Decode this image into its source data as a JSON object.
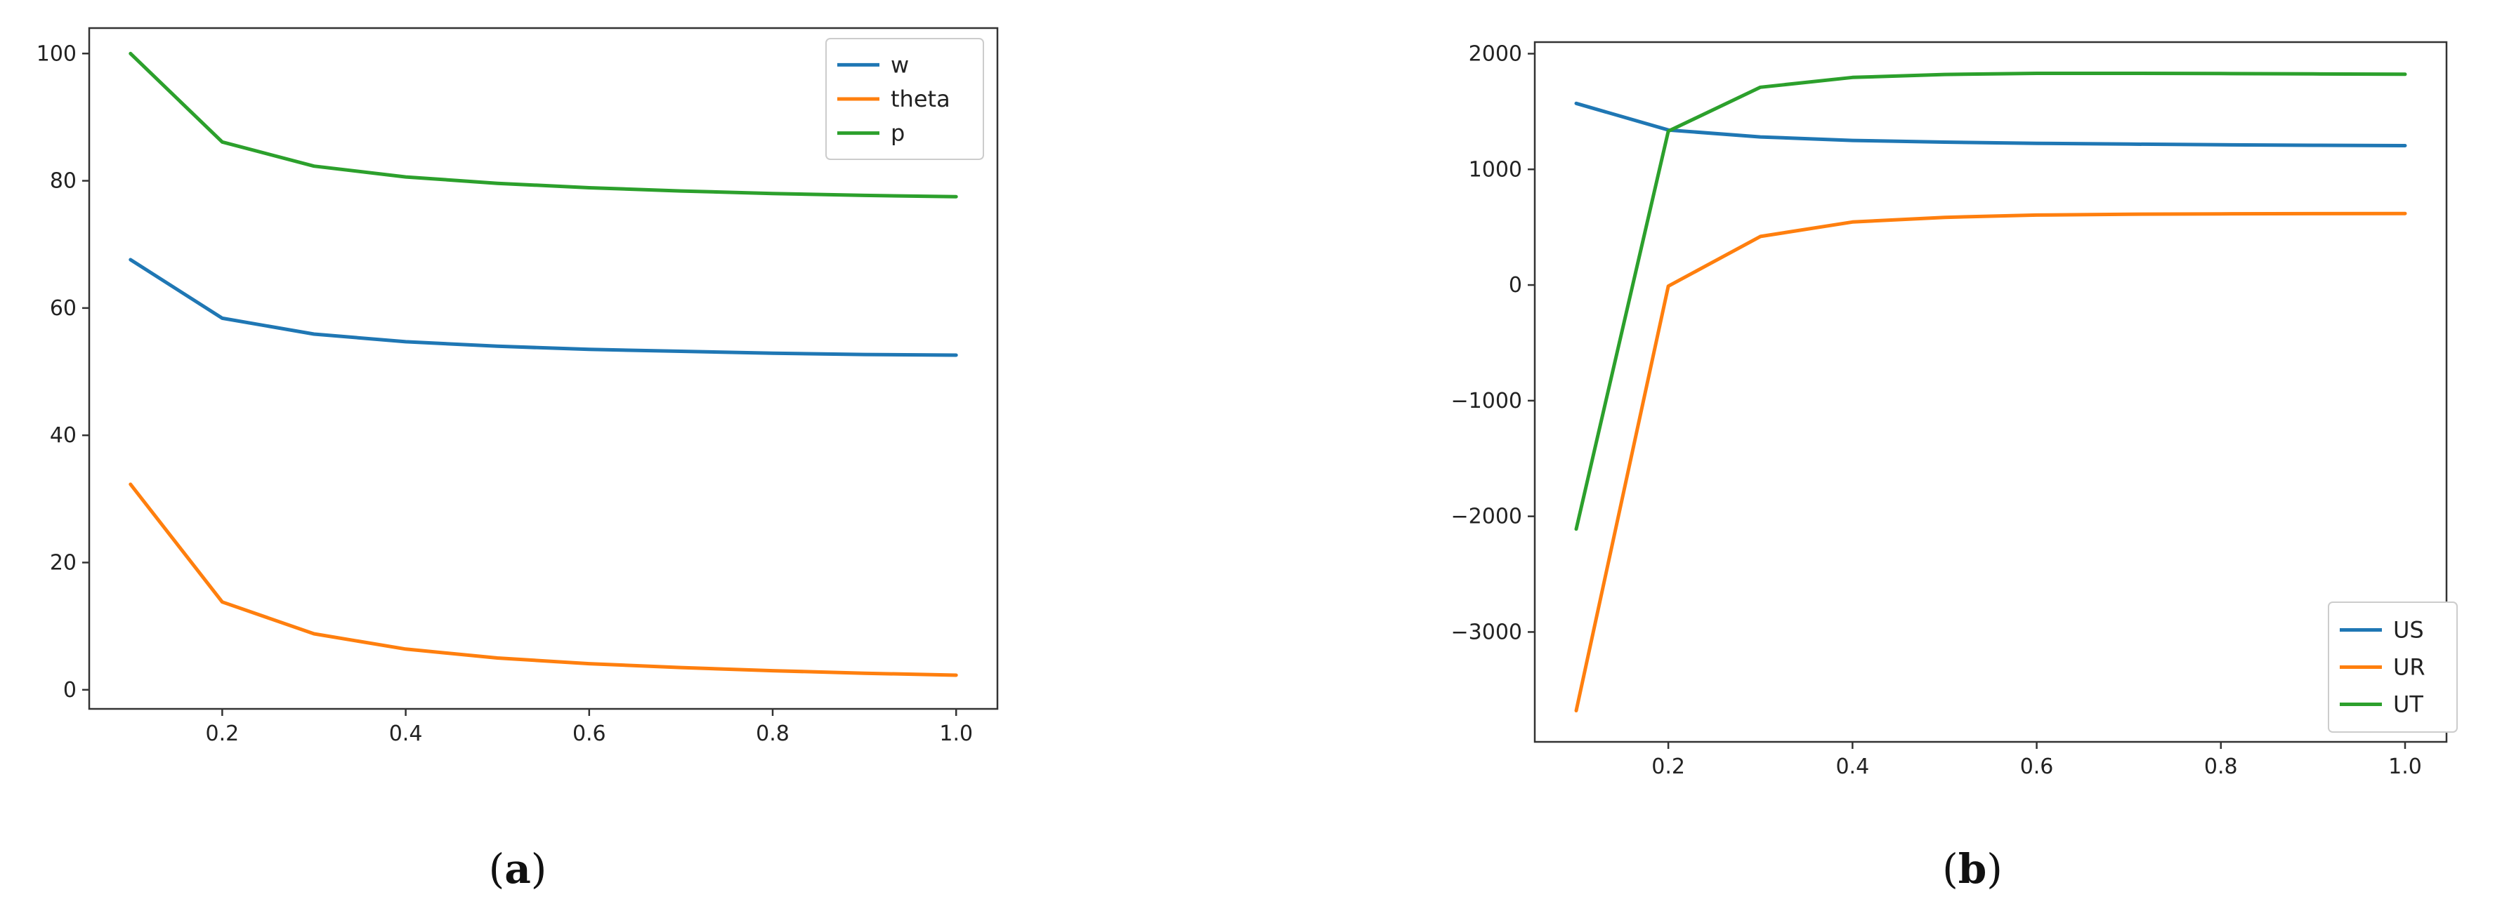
{
  "colors": {
    "blue": "#1f77b4",
    "orange": "#ff7f0e",
    "green": "#2ca02c"
  },
  "chart_data": [
    {
      "type": "line",
      "caption": "a",
      "x": [
        0.1,
        0.2,
        0.3,
        0.4,
        0.5,
        0.6,
        0.7,
        0.8,
        0.9,
        1.0
      ],
      "xlim": [
        0.055,
        1.045
      ],
      "ylim": [
        -3,
        104
      ],
      "xticks": [
        0.2,
        0.4,
        0.6,
        0.8,
        1.0
      ],
      "xtick_labels": [
        "0.2",
        "0.4",
        "0.6",
        "0.8",
        "1.0"
      ],
      "yticks": [
        0,
        20,
        40,
        60,
        80,
        100
      ],
      "ytick_labels": [
        "0",
        "20",
        "40",
        "60",
        "80",
        "100"
      ],
      "legend_position": "top-right",
      "grid": false,
      "series": [
        {
          "name": "w",
          "color": "#1f77b4",
          "values": [
            67.6,
            58.4,
            55.9,
            54.7,
            54.0,
            53.5,
            53.2,
            52.9,
            52.7,
            52.6
          ]
        },
        {
          "name": "theta",
          "color": "#ff7f0e",
          "values": [
            32.3,
            13.8,
            8.8,
            6.4,
            5.0,
            4.1,
            3.5,
            3.0,
            2.6,
            2.3
          ]
        },
        {
          "name": "p",
          "color": "#2ca02c",
          "values": [
            100.0,
            86.1,
            82.3,
            80.6,
            79.6,
            78.9,
            78.4,
            78.0,
            77.7,
            77.5
          ]
        }
      ]
    },
    {
      "type": "line",
      "caption": "b",
      "x": [
        0.1,
        0.2,
        0.3,
        0.4,
        0.5,
        0.6,
        0.7,
        0.8,
        0.9,
        1.0
      ],
      "xlim": [
        0.055,
        1.045
      ],
      "ylim": [
        -3950,
        2100
      ],
      "xticks": [
        0.2,
        0.4,
        0.6,
        0.8,
        1.0
      ],
      "xtick_labels": [
        "0.2",
        "0.4",
        "0.6",
        "0.8",
        "1.0"
      ],
      "yticks": [
        -3000,
        -2000,
        -1000,
        0,
        1000,
        2000
      ],
      "ytick_labels": [
        "−3000",
        "−2000",
        "−1000",
        "0",
        "1000",
        "2000"
      ],
      "legend_position": "bottom-right",
      "grid": false,
      "series": [
        {
          "name": "US",
          "color": "#1f77b4",
          "values": [
            1570,
            1340,
            1280,
            1250,
            1235,
            1225,
            1218,
            1212,
            1208,
            1205
          ]
        },
        {
          "name": "UR",
          "color": "#ff7f0e",
          "values": [
            -3680,
            -10,
            420,
            545,
            585,
            605,
            612,
            615,
            617,
            618
          ]
        },
        {
          "name": "UT",
          "color": "#2ca02c",
          "values": [
            -2110,
            1330,
            1710,
            1795,
            1820,
            1830,
            1830,
            1828,
            1825,
            1822
          ]
        }
      ]
    }
  ]
}
